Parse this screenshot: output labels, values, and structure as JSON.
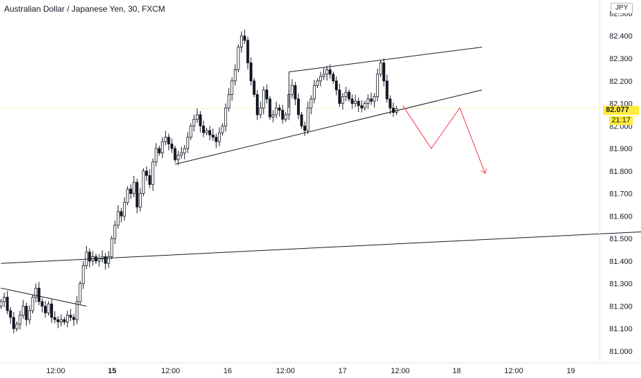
{
  "header": {
    "title": "Australian Dollar / Japanese Yen, 30, FXCM"
  },
  "axis": {
    "currency": "JPY"
  },
  "price_label": {
    "value": "82.077",
    "countdown": "21:17",
    "color": "#ffeb3b"
  },
  "colors": {
    "candle": "#131722",
    "trendline": "#131722",
    "projection": "#f23645",
    "price_line": "#f5e6a8"
  },
  "chart_data": {
    "type": "candlestick",
    "title": "Australian Dollar / Japanese Yen, 30, FXCM",
    "xlabel": "",
    "ylabel": "",
    "ylim": [
      80.95,
      82.55
    ],
    "y_ticks": [
      "81.000",
      "81.100",
      "81.200",
      "81.300",
      "81.400",
      "81.500",
      "81.600",
      "81.700",
      "81.800",
      "81.900",
      "82.000",
      "82.100",
      "82.200",
      "82.300",
      "82.400",
      "82.500"
    ],
    "x_ticks": [
      {
        "label": "12:00",
        "bold": false
      },
      {
        "label": "15",
        "bold": true
      },
      {
        "label": "12:00",
        "bold": false
      },
      {
        "label": "16",
        "bold": false
      },
      {
        "label": "12:00",
        "bold": false
      },
      {
        "label": "17",
        "bold": false
      },
      {
        "label": "12:00",
        "bold": false
      },
      {
        "label": "18",
        "bold": false
      },
      {
        "label": "12:00",
        "bold": false
      },
      {
        "label": "19",
        "bold": false
      }
    ],
    "last_price": 82.077,
    "close_series": [
      81.22,
      81.24,
      81.18,
      81.15,
      81.1,
      81.12,
      81.16,
      81.2,
      81.14,
      81.18,
      81.24,
      81.28,
      81.22,
      81.2,
      81.17,
      81.21,
      81.15,
      81.14,
      81.13,
      81.14,
      81.13,
      81.16,
      81.15,
      81.14,
      81.22,
      81.3,
      81.38,
      81.44,
      81.4,
      81.42,
      81.4,
      81.41,
      81.42,
      81.39,
      81.42,
      81.5,
      81.56,
      81.62,
      81.6,
      81.66,
      81.72,
      81.7,
      81.75,
      81.64,
      81.7,
      81.8,
      81.78,
      81.74,
      81.84,
      81.9,
      81.88,
      81.93,
      81.95,
      81.92,
      81.9,
      81.85,
      81.87,
      81.88,
      81.9,
      81.95,
      82.0,
      82.03,
      82.05,
      82.0,
      81.97,
      81.98,
      81.96,
      81.95,
      81.93,
      81.97,
      82.0,
      82.08,
      82.14,
      82.2,
      82.25,
      82.35,
      82.4,
      82.38,
      82.28,
      82.2,
      82.14,
      82.05,
      82.08,
      82.16,
      82.12,
      82.04,
      82.05,
      82.08,
      82.07,
      82.03,
      82.05,
      82.14,
      82.18,
      82.12,
      82.05,
      82.0,
      81.98,
      82.08,
      82.12,
      82.18,
      82.2,
      82.22,
      82.23,
      82.25,
      82.23,
      82.2,
      82.16,
      82.1,
      82.13,
      82.15,
      82.12,
      82.1,
      82.11,
      82.09,
      82.08,
      82.1,
      82.12,
      82.11,
      82.13,
      82.23,
      82.28,
      82.2,
      82.12,
      82.08,
      82.06,
      82.077
    ],
    "drawings": {
      "trendlines": [
        {
          "from": [
            "bar-0",
            81.28
          ],
          "to": [
            "bar-27",
            81.2
          ]
        },
        {
          "from": [
            "bar-0",
            81.39
          ],
          "to": [
            "far-right",
            81.53
          ]
        },
        {
          "from": [
            "bar-55",
            81.83
          ],
          "to": [
            "bar-152",
            82.16
          ]
        },
        {
          "from": [
            "bar-91",
            82.24
          ],
          "to": [
            "bar-152",
            82.35
          ]
        }
      ],
      "projection": [
        [
          "bar-127",
          82.09
        ],
        [
          "bar-136",
          81.9
        ],
        [
          "bar-145",
          82.08
        ],
        [
          "bar-153",
          81.79
        ]
      ]
    }
  }
}
